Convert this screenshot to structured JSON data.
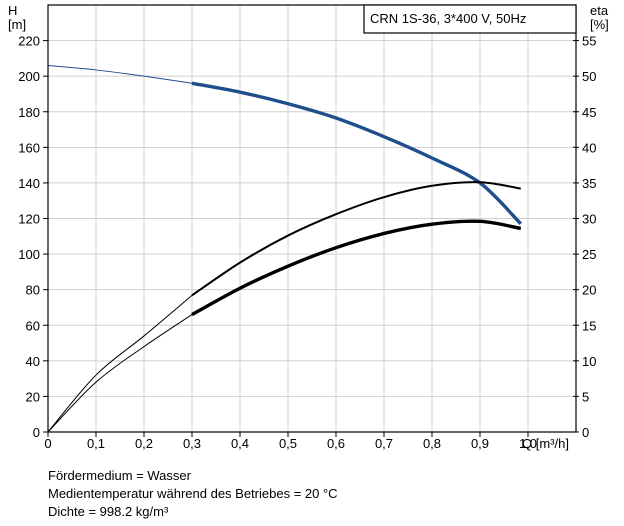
{
  "chart_data": {
    "type": "line",
    "title": "CRN 1S-36, 3*400 V, 50Hz",
    "xlabel": "Q [m³/h]",
    "ylabel_left": [
      "H",
      "[m]"
    ],
    "ylabel_right": [
      "eta",
      "[%]"
    ],
    "xlim": [
      0,
      1.1
    ],
    "ylim_left": [
      0,
      240
    ],
    "ylim_right": [
      0,
      60
    ],
    "x_ticks": [
      "0",
      "0,1",
      "0,2",
      "0,3",
      "0,4",
      "0,5",
      "0,6",
      "0,7",
      "0,8",
      "0,9",
      "1,0"
    ],
    "x_tick_values": [
      0,
      0.1,
      0.2,
      0.3,
      0.4,
      0.5,
      0.6,
      0.7,
      0.8,
      0.9,
      1.0
    ],
    "y_left_ticks": [
      0,
      20,
      40,
      60,
      80,
      100,
      120,
      140,
      160,
      180,
      200,
      220
    ],
    "y_right_ticks": [
      0,
      5,
      10,
      15,
      20,
      25,
      30,
      35,
      40,
      45,
      50,
      55
    ],
    "operating_range": [
      0.3,
      0.985
    ],
    "series": [
      {
        "axis": "left",
        "color": "#1f4e8c",
        "x": [
          0,
          0.1,
          0.2,
          0.3,
          0.4,
          0.5,
          0.6,
          0.7,
          0.8,
          0.9,
          0.985
        ],
        "values": [
          206,
          203.5,
          200,
          196,
          191,
          184.5,
          176.5,
          166,
          154,
          140,
          117
        ]
      },
      {
        "axis": "right",
        "color": "#000000",
        "x": [
          0,
          0.1,
          0.2,
          0.3,
          0.4,
          0.5,
          0.6,
          0.7,
          0.8,
          0.9,
          0.985
        ],
        "values": [
          0,
          8,
          13.5,
          19.2,
          23.8,
          27.6,
          30.6,
          33,
          34.6,
          35.1,
          34.2
        ]
      },
      {
        "axis": "right",
        "color": "#000000",
        "x": [
          0,
          0.1,
          0.2,
          0.3,
          0.4,
          0.5,
          0.6,
          0.7,
          0.8,
          0.9,
          0.985
        ],
        "values": [
          0,
          7,
          12,
          16.5,
          20.2,
          23.3,
          25.9,
          27.9,
          29.2,
          29.6,
          28.6
        ]
      }
    ]
  },
  "notes": [
    "Fördermedium = Wasser",
    "Medientemperatur während des Betriebes = 20 °C",
    "Dichte = 998.2 kg/m³"
  ]
}
